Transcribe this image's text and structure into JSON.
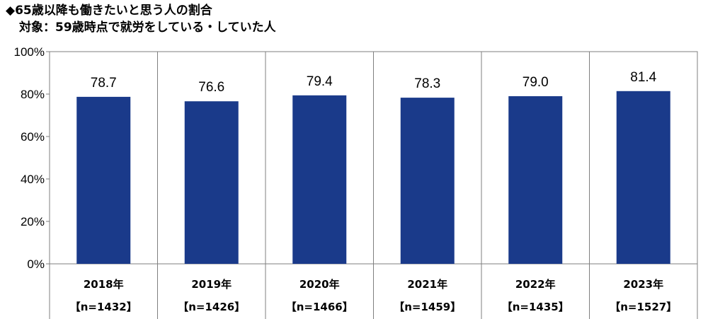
{
  "title": "◆65歳以降も働きたいと思う人の割合",
  "subtitle": "対象：59歳時点で就労をしている・していた人",
  "colors": {
    "bar": "#1a3a8a",
    "grid": "#7f7f7f"
  },
  "chart_data": {
    "type": "bar",
    "title": "◆65歳以降も働きたいと思う人の割合",
    "subtitle": "対象：59歳時点で就労をしている・していた人",
    "categories": [
      "2018年",
      "2019年",
      "2020年",
      "2021年",
      "2022年",
      "2023年"
    ],
    "sample_sizes": [
      "【n=1432】",
      "【n=1426】",
      "【n=1466】",
      "【n=1459】",
      "【n=1435】",
      "【n=1527】"
    ],
    "values": [
      78.7,
      76.6,
      79.4,
      78.3,
      79.0,
      81.4
    ],
    "value_labels": [
      "78.7",
      "76.6",
      "79.4",
      "78.3",
      "79.0",
      "81.4"
    ],
    "yticks": [
      "0%",
      "20%",
      "40%",
      "60%",
      "80%",
      "100%"
    ],
    "ylim": [
      0,
      100
    ],
    "xlabel": "",
    "ylabel": "",
    "grid": false,
    "legend": "none"
  }
}
